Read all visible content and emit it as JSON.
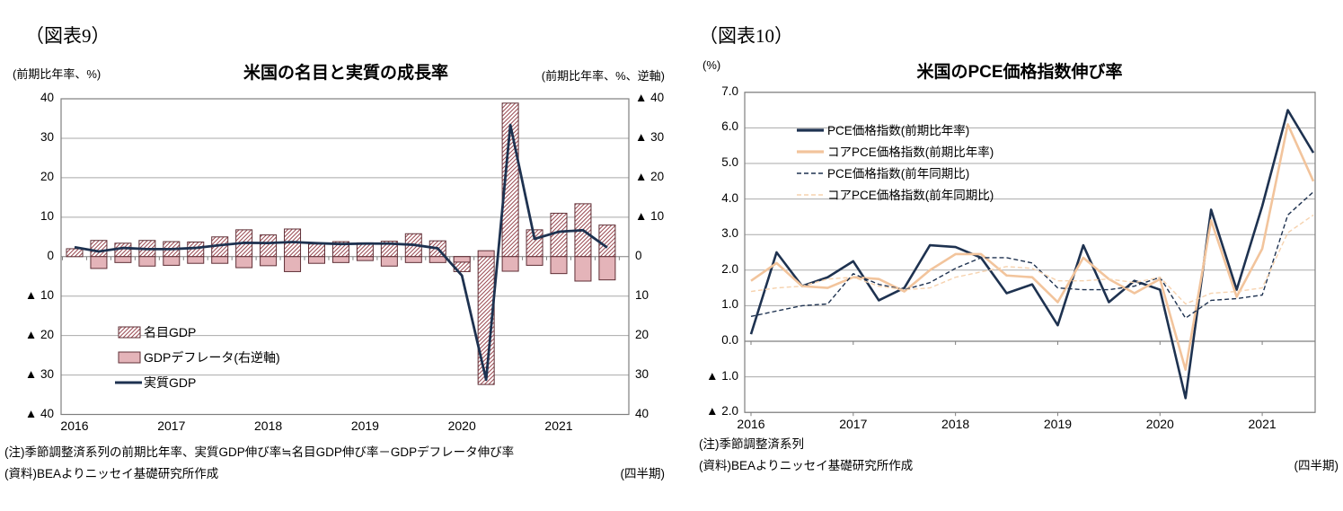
{
  "figure9": {
    "label": "（図表9）",
    "title": "米国の名目と実質の成長率",
    "left_axis_caption": "(前期比年率、%)",
    "right_axis_caption": "(前期比年率、%、逆軸)",
    "left_axis_ticks": [
      "40",
      "30",
      "20",
      "10",
      "0",
      "▲ 10",
      "▲ 20",
      "▲ 30",
      "▲ 40"
    ],
    "right_axis_ticks": [
      "▲ 40",
      "▲ 30",
      "▲ 20",
      "▲ 10",
      "0",
      "10",
      "20",
      "30",
      "40"
    ],
    "x_labels": [
      "2016",
      "2017",
      "2018",
      "2019",
      "2020",
      "2021"
    ],
    "note1": "(注)季節調整済系列の前期比年率、実質GDP伸び率≒名目GDP伸び率－GDPデフレータ伸び率",
    "note2": "(資料)BEAよりニッセイ基礎研究所作成",
    "freq_label": "(四半期)"
  },
  "figure10": {
    "label": "（図表10）",
    "title": "米国のPCE価格指数伸び率",
    "left_axis_caption": "(%)",
    "left_axis_ticks": [
      "7.0",
      "6.0",
      "5.0",
      "4.0",
      "3.0",
      "2.0",
      "1.0",
      "0.0",
      "▲ 1.0",
      "▲ 2.0"
    ],
    "x_labels": [
      "2016",
      "2017",
      "2018",
      "2019",
      "2020",
      "2021"
    ],
    "note1": "(注)季節調整済系列",
    "note2": "(資料)BEAよりニッセイ基礎研究所作成",
    "freq_label": "(四半期)"
  },
  "chart_data": [
    {
      "type": "bar",
      "subtype": "combo-bar-line",
      "title": "米国の名目と実質の成長率",
      "categories": [
        "2016Q1",
        "2016Q2",
        "2016Q3",
        "2016Q4",
        "2017Q1",
        "2017Q2",
        "2017Q3",
        "2017Q4",
        "2018Q1",
        "2018Q2",
        "2018Q3",
        "2018Q4",
        "2019Q1",
        "2019Q2",
        "2019Q3",
        "2019Q4",
        "2020Q1",
        "2020Q2",
        "2020Q3",
        "2020Q4",
        "2021Q1",
        "2021Q2",
        "2021Q3"
      ],
      "x_year_labels": [
        "2016",
        "2017",
        "2018",
        "2019",
        "2020",
        "2021"
      ],
      "left_axis": {
        "caption": "(前期比年率、%)",
        "min": -40,
        "max": 40,
        "step": 10
      },
      "right_axis": {
        "caption": "(前期比年率、%、逆軸)",
        "min": -40,
        "max": 40,
        "step": 10,
        "inverted": true
      },
      "grid": true,
      "legend_position": "inside-lower-left",
      "series": [
        {
          "name": "名目GDP",
          "type": "bar",
          "axis": "left",
          "style": "hatched",
          "values": [
            2.0,
            4.1,
            3.4,
            4.1,
            3.8,
            3.7,
            5.0,
            6.8,
            5.5,
            7.0,
            3.2,
            3.8,
            3.5,
            3.9,
            5.8,
            4.0,
            -3.8,
            -32.4,
            38.9,
            6.8,
            11.0,
            13.4,
            8.0
          ]
        },
        {
          "name": "GDPデフレータ(右逆軸)",
          "type": "bar",
          "axis": "right-inverted",
          "style": "solid-pink",
          "values": [
            0.1,
            3.0,
            1.5,
            2.4,
            2.2,
            1.7,
            1.7,
            2.8,
            2.3,
            3.8,
            1.7,
            1.5,
            1.0,
            2.4,
            1.5,
            1.5,
            1.4,
            -1.5,
            3.7,
            2.2,
            4.3,
            6.2,
            5.9
          ]
        },
        {
          "name": "実質GDP",
          "type": "line",
          "axis": "left",
          "style": "navy-solid",
          "values": [
            2.4,
            1.3,
            2.2,
            1.9,
            1.9,
            2.2,
            2.9,
            3.5,
            3.45,
            3.7,
            3.4,
            3.2,
            3.3,
            3.3,
            3.0,
            2.1,
            -4.8,
            -31.2,
            33.4,
            4.5,
            6.3,
            6.7,
            2.3
          ]
        }
      ]
    },
    {
      "type": "line",
      "title": "米国のPCE価格指数伸び率",
      "categories": [
        "2016Q1",
        "2016Q2",
        "2016Q3",
        "2016Q4",
        "2017Q1",
        "2017Q2",
        "2017Q3",
        "2017Q4",
        "2018Q1",
        "2018Q2",
        "2018Q3",
        "2018Q4",
        "2019Q1",
        "2019Q2",
        "2019Q3",
        "2019Q4",
        "2020Q1",
        "2020Q2",
        "2020Q3",
        "2020Q4",
        "2021Q1",
        "2021Q2",
        "2021Q3"
      ],
      "x_year_labels": [
        "2016",
        "2017",
        "2018",
        "2019",
        "2020",
        "2021"
      ],
      "ylabel": "(%)",
      "ylim": [
        -2,
        7
      ],
      "ystep": 1,
      "grid": true,
      "legend_position": "inside-upper-left",
      "series": [
        {
          "name": "PCE価格指数(前期比年率)",
          "style": "navy-solid",
          "values": [
            0.2,
            2.5,
            1.55,
            1.8,
            2.25,
            1.15,
            1.5,
            2.7,
            2.65,
            2.35,
            1.35,
            1.6,
            0.45,
            2.7,
            1.1,
            1.7,
            1.45,
            -1.6,
            3.7,
            1.45,
            3.8,
            6.5,
            5.3
          ]
        },
        {
          "name": "コアPCE価格指数(前期比年率)",
          "style": "tan-solid",
          "values": [
            1.7,
            2.2,
            1.55,
            1.5,
            1.8,
            1.75,
            1.4,
            2.0,
            2.45,
            2.45,
            1.85,
            1.8,
            1.1,
            2.35,
            1.75,
            1.35,
            1.75,
            -0.8,
            3.4,
            1.25,
            2.6,
            6.1,
            4.5
          ]
        },
        {
          "name": "PCE価格指数(前年同期比)",
          "style": "navy-dashed",
          "values": [
            0.7,
            0.85,
            1.0,
            1.05,
            1.9,
            1.6,
            1.45,
            1.65,
            2.05,
            2.35,
            2.35,
            2.2,
            1.5,
            1.45,
            1.45,
            1.55,
            1.8,
            0.65,
            1.15,
            1.2,
            1.3,
            3.55,
            4.2
          ]
        },
        {
          "name": "コアPCE価格指数(前年同期比)",
          "style": "tan-dashed",
          "values": [
            1.4,
            1.5,
            1.55,
            1.75,
            1.8,
            1.55,
            1.45,
            1.5,
            1.8,
            1.95,
            2.1,
            2.05,
            1.7,
            1.7,
            1.75,
            1.65,
            1.8,
            1.05,
            1.35,
            1.4,
            1.5,
            3.05,
            3.55
          ]
        }
      ]
    }
  ],
  "colors": {
    "navy": "#1e3250",
    "tan": "#f2c49c",
    "tan_light": "#f6d2ae",
    "pink": "#e4b4b9",
    "maroon": "#5f2f36",
    "hatch": "#9a4a52",
    "grid": "#a9a9a9",
    "zero_line": "#7f7f7f",
    "frame": "#7f7f7f"
  }
}
